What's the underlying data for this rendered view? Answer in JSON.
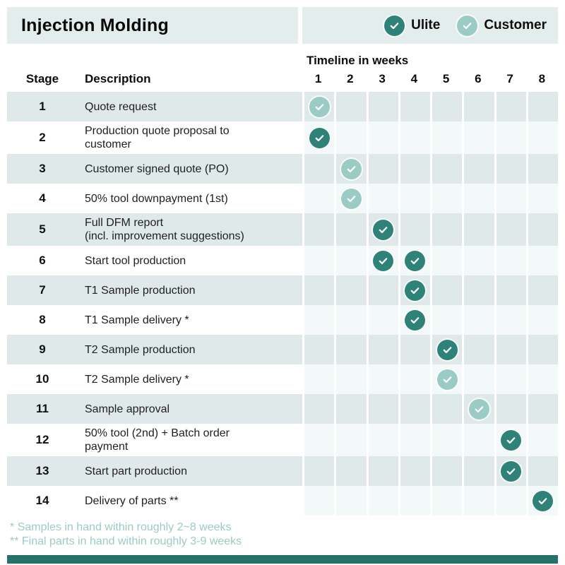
{
  "colors": {
    "ulite": "#2f8277",
    "customer": "#9accc5",
    "row_shade": "#dfe9e9",
    "header_band": "#e3edec",
    "footnote": "#9accc5",
    "bottom_bar": "#27716a"
  },
  "footnotes": [
    "* Samples in hand within roughly 2~8 weeks",
    "** Final parts in hand within roughly 3-9 weeks"
  ],
  "chart_data": {
    "type": "table",
    "title": "Injection Molding",
    "timeline_label": "Timeline in weeks",
    "weeks": [
      "1",
      "2",
      "3",
      "4",
      "5",
      "6",
      "7",
      "8"
    ],
    "legend": [
      {
        "label": "Ulite",
        "actor": "ulite"
      },
      {
        "label": "Customer",
        "actor": "customer"
      }
    ],
    "columns": {
      "stage": "Stage",
      "description": "Description"
    },
    "rows": [
      {
        "stage": "1",
        "description": "Quote request",
        "checks": [
          {
            "week": 1,
            "actor": "customer"
          }
        ]
      },
      {
        "stage": "2",
        "description": "Production quote proposal to\ncustomer",
        "checks": [
          {
            "week": 1,
            "actor": "ulite"
          }
        ]
      },
      {
        "stage": "3",
        "description": "Customer signed quote (PO)",
        "checks": [
          {
            "week": 2,
            "actor": "customer"
          }
        ]
      },
      {
        "stage": "4",
        "description": "50% tool downpayment (1st)",
        "checks": [
          {
            "week": 2,
            "actor": "customer"
          }
        ]
      },
      {
        "stage": "5",
        "description": "Full DFM report\n(incl. improvement suggestions)",
        "checks": [
          {
            "week": 3,
            "actor": "ulite"
          }
        ]
      },
      {
        "stage": "6",
        "description": "Start tool production",
        "checks": [
          {
            "week": 3,
            "actor": "ulite"
          },
          {
            "week": 4,
            "actor": "ulite"
          }
        ]
      },
      {
        "stage": "7",
        "description": "T1 Sample production",
        "checks": [
          {
            "week": 4,
            "actor": "ulite"
          }
        ]
      },
      {
        "stage": "8",
        "description": "T1 Sample delivery *",
        "checks": [
          {
            "week": 4,
            "actor": "ulite"
          }
        ]
      },
      {
        "stage": "9",
        "description": "T2 Sample production",
        "checks": [
          {
            "week": 5,
            "actor": "ulite"
          }
        ]
      },
      {
        "stage": "10",
        "description": "T2 Sample delivery *",
        "checks": [
          {
            "week": 5,
            "actor": "customer"
          }
        ]
      },
      {
        "stage": "11",
        "description": "Sample approval",
        "checks": [
          {
            "week": 6,
            "actor": "customer"
          }
        ]
      },
      {
        "stage": "12",
        "description": "50% tool (2nd) + Batch order\npayment",
        "checks": [
          {
            "week": 7,
            "actor": "ulite"
          }
        ]
      },
      {
        "stage": "13",
        "description": "Start part production",
        "checks": [
          {
            "week": 7,
            "actor": "ulite"
          }
        ]
      },
      {
        "stage": "14",
        "description": "Delivery of parts **",
        "checks": [
          {
            "week": 8,
            "actor": "ulite"
          }
        ]
      }
    ]
  }
}
